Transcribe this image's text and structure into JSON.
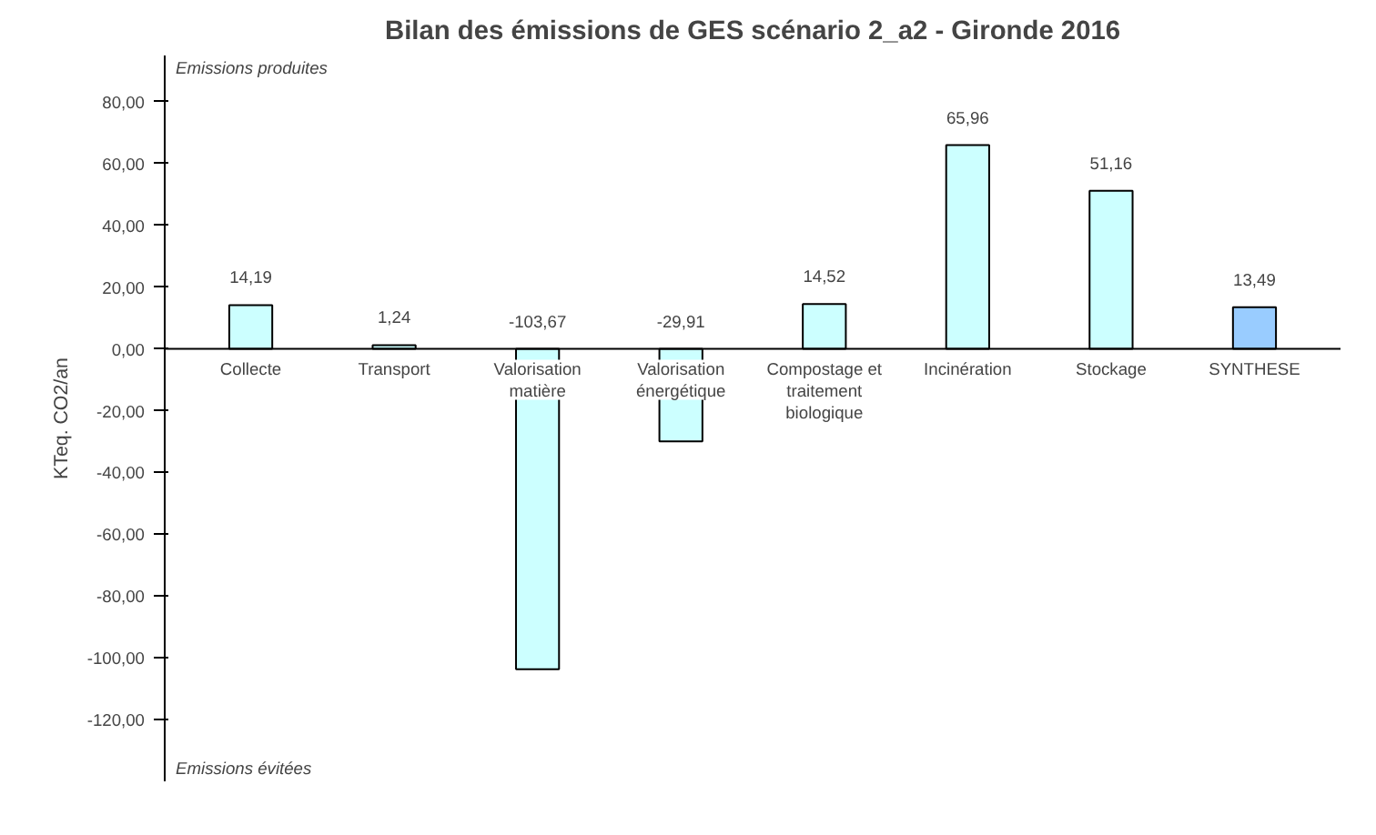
{
  "chart_data": {
    "type": "bar",
    "title": "Bilan des émissions de GES scénario 2_a2 - Gironde 2016",
    "ylabel": "KTeq. CO2/an",
    "categories": [
      "Collecte",
      "Transport",
      "Valorisation\nmatière",
      "Valorisation\nénergétique",
      "Compostage et\ntraitement\nbiologique",
      "Incinération",
      "Stockage",
      "SYNTHESE"
    ],
    "values": [
      14.19,
      1.24,
      -103.67,
      -29.91,
      14.52,
      65.96,
      51.16,
      13.49
    ],
    "colors": [
      "#ccffff",
      "#ccffff",
      "#ccffff",
      "#ccffff",
      "#ccffff",
      "#ccffff",
      "#ccffff",
      "#99ccff"
    ],
    "value_labels": [
      "14,19",
      "1,24",
      "-103,67",
      "-29,91",
      "14,52",
      "65,96",
      "51,16",
      "13,49"
    ],
    "ylim": [
      -140,
      95
    ],
    "yticks": [
      {
        "value": -120,
        "label": "-120,00"
      },
      {
        "value": -100,
        "label": "-100,00"
      },
      {
        "value": -80,
        "label": "-80,00"
      },
      {
        "value": -60,
        "label": "-60,00"
      },
      {
        "value": -40,
        "label": "-40,00"
      },
      {
        "value": -20,
        "label": "-20,00"
      },
      {
        "value": 0,
        "label": "0,00"
      },
      {
        "value": 20,
        "label": "20,00"
      },
      {
        "value": 40,
        "label": "40,00"
      },
      {
        "value": 60,
        "label": "60,00"
      },
      {
        "value": 80,
        "label": "80,00"
      }
    ],
    "annotations": [
      "Emissions produites",
      "Emissions évitées"
    ],
    "grid": false
  }
}
